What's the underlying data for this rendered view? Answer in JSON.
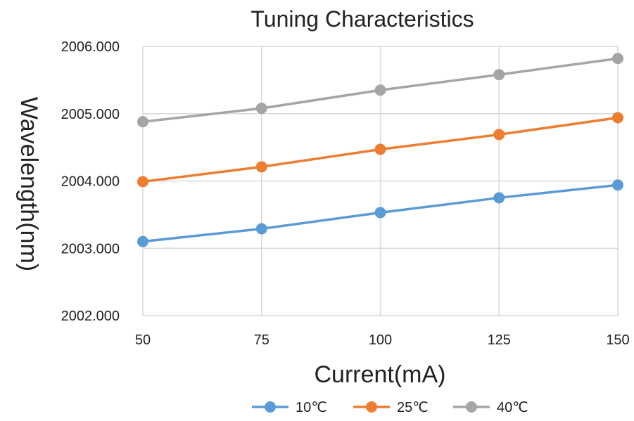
{
  "chart_data": {
    "type": "line",
    "title": "Tuning Characteristics",
    "xlabel": "Current(mA)",
    "ylabel": "Wavelength(nm)",
    "x": [
      50,
      75,
      100,
      125,
      150
    ],
    "x_tick_labels": [
      "50",
      "75",
      "100",
      "125",
      "150"
    ],
    "y_tick_labels": [
      "2002.000",
      "2003.000",
      "2004.000",
      "2005.000",
      "2006.000"
    ],
    "ylim": [
      2002,
      2006
    ],
    "xlim": [
      50,
      150
    ],
    "grid": true,
    "legend_position": "bottom",
    "series": [
      {
        "name": "10℃",
        "color": "#5B9BD5",
        "values": [
          2003.1,
          2003.29,
          2003.53,
          2003.75,
          2003.94
        ]
      },
      {
        "name": "25℃",
        "color": "#ED7D31",
        "values": [
          2003.99,
          2004.21,
          2004.47,
          2004.69,
          2004.94
        ]
      },
      {
        "name": "40℃",
        "color": "#A5A5A5",
        "values": [
          2004.88,
          2005.08,
          2005.35,
          2005.58,
          2005.82
        ]
      }
    ]
  }
}
